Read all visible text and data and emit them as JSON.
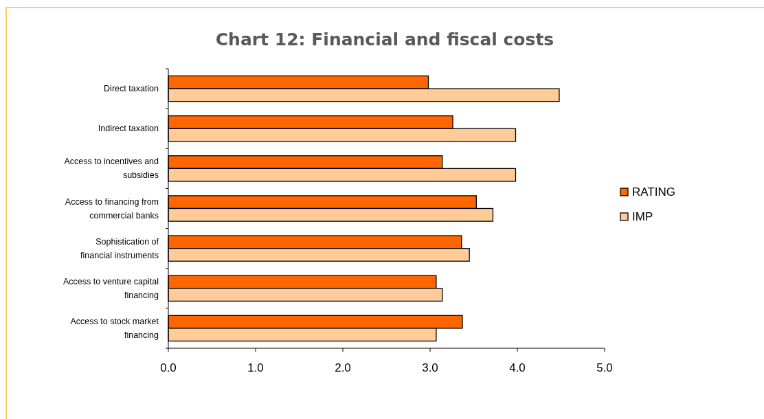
{
  "chart_data": {
    "type": "bar",
    "orientation": "horizontal",
    "title": "Chart 12: Financial and fiscal costs",
    "categories": [
      "Direct taxation",
      "Indirect taxation",
      "Access to incentives and subsidies",
      "Access to financing from commercial banks",
      "Sophistication of financial instruments",
      "Access to venture capital financing",
      "Access to stock market financing"
    ],
    "series": [
      {
        "name": "RATING",
        "color": "#ff6600",
        "values": [
          2.98,
          3.26,
          3.14,
          3.53,
          3.36,
          3.07,
          3.37
        ]
      },
      {
        "name": "IMP",
        "color": "#ffcc99",
        "values": [
          4.48,
          3.98,
          3.98,
          3.72,
          3.45,
          3.14,
          3.07
        ]
      }
    ],
    "xlim": [
      0,
      5
    ],
    "xticks": [
      {
        "value": 0,
        "label": "0.0"
      },
      {
        "value": 1,
        "label": "1.0"
      },
      {
        "value": 2,
        "label": "2.0"
      },
      {
        "value": 3,
        "label": "3.0"
      },
      {
        "value": 4,
        "label": "4.0"
      },
      {
        "value": 5,
        "label": "5.0"
      }
    ],
    "legend": "right"
  }
}
